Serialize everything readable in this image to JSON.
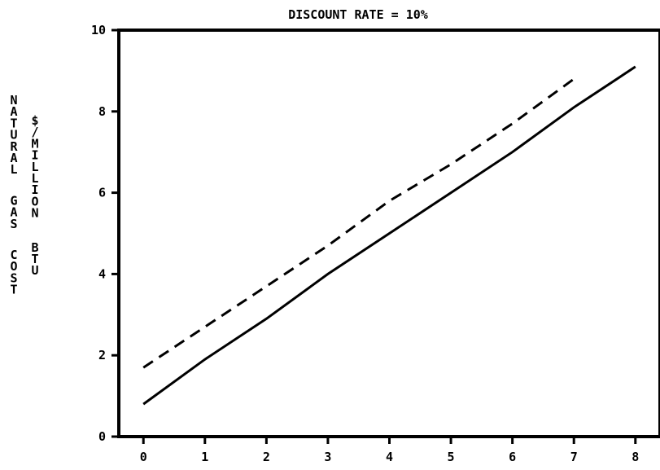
{
  "chart_data": {
    "type": "line",
    "title": "DISCOUNT RATE = 10%",
    "xlabel": "",
    "ylabel": "NATURAL GAS COST",
    "ylabel2": "$/MILLION BTU",
    "xlim": [
      -0.4,
      8.4
    ],
    "ylim": [
      0,
      10
    ],
    "x_ticks": [
      0,
      1,
      2,
      3,
      4,
      5,
      6,
      7,
      8
    ],
    "y_ticks": [
      0,
      2,
      4,
      6,
      8,
      10
    ],
    "grid": false,
    "legend": "none",
    "series": [
      {
        "style": "dashed",
        "x": [
          0,
          1,
          2,
          3,
          4,
          5,
          6,
          7
        ],
        "y": [
          1.7,
          2.7,
          3.7,
          4.7,
          5.8,
          6.7,
          7.7,
          8.8
        ]
      },
      {
        "style": "solid",
        "x": [
          0,
          1,
          2,
          3,
          4,
          5,
          6,
          7,
          8
        ],
        "y": [
          0.8,
          1.9,
          2.9,
          4.0,
          5.0,
          6.0,
          7.0,
          8.1,
          9.1
        ]
      }
    ]
  }
}
